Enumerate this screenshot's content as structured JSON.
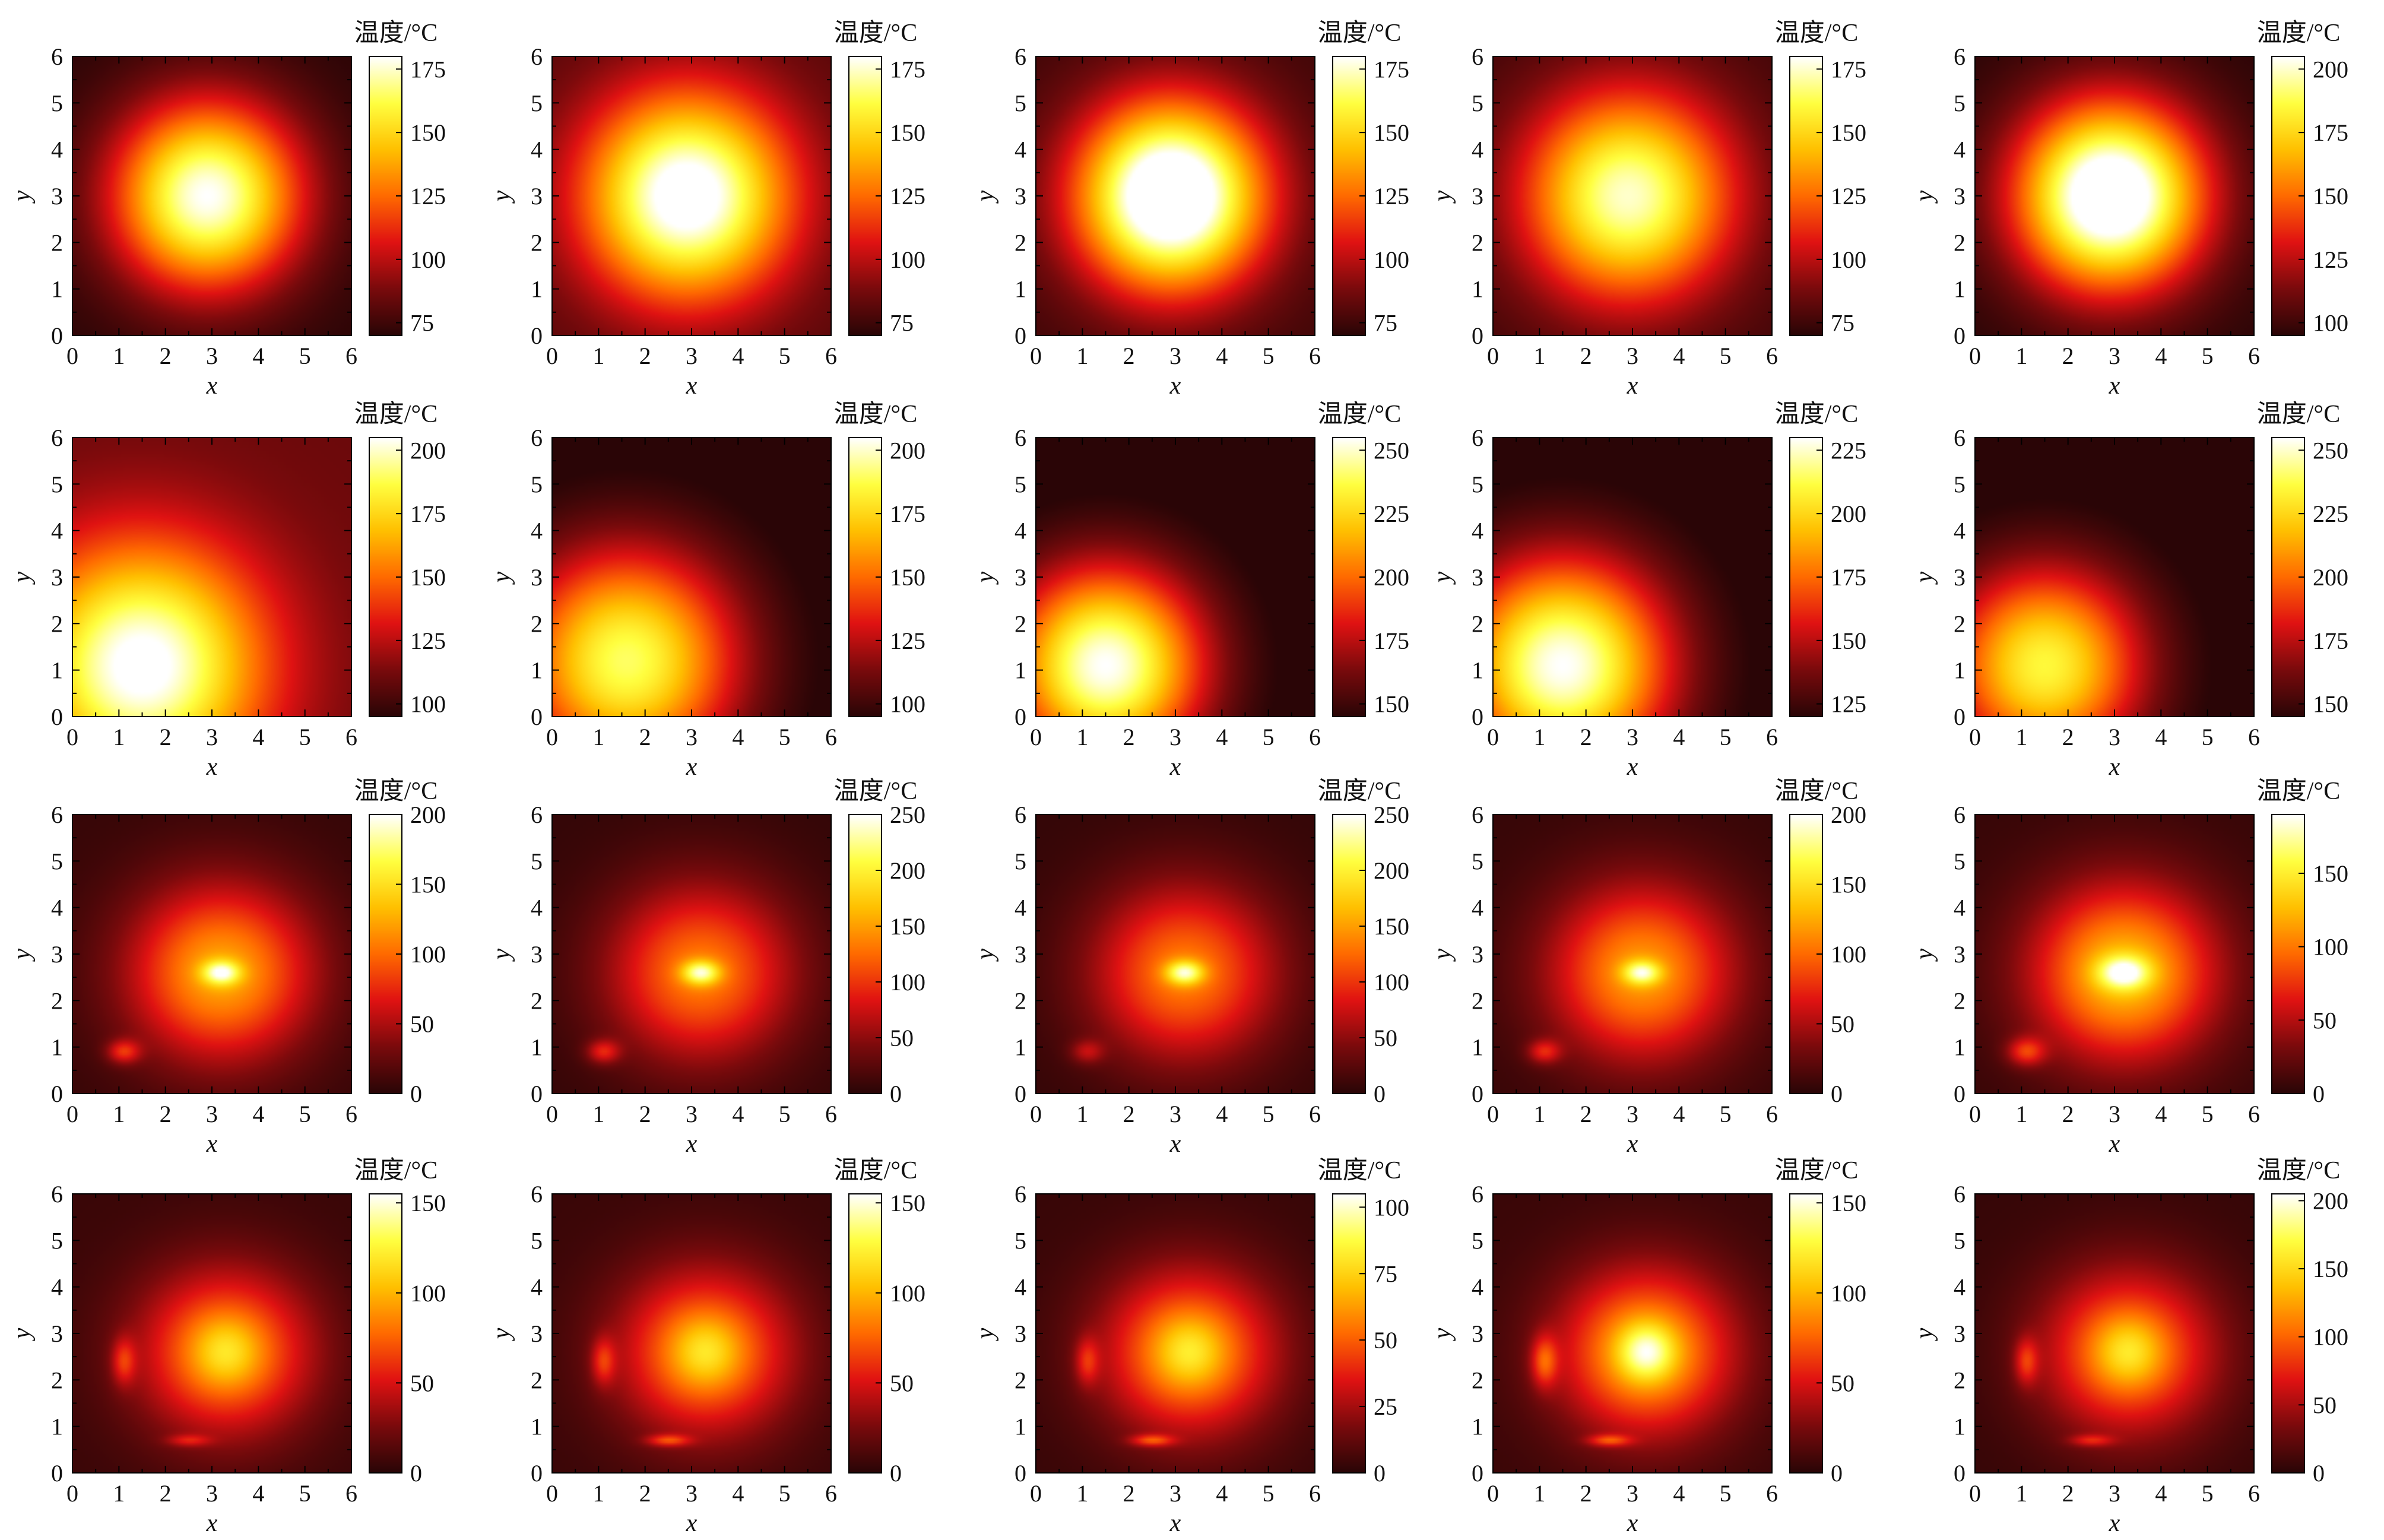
{
  "chart_data": {
    "type": "heatmap",
    "layout": {
      "rows": 4,
      "cols": 5
    },
    "xlabel": "x",
    "ylabel": "y",
    "colorbar_label": "温度/°C",
    "colormap": [
      "#2a0506",
      "#7a0a0c",
      "#e01212",
      "#ff6a00",
      "#ffc000",
      "#ffff40",
      "#ffffff"
    ],
    "xlim": [
      0,
      6
    ],
    "ylim": [
      0,
      6
    ],
    "xticks": [
      0,
      1,
      2,
      3,
      4,
      5,
      6
    ],
    "yticks": [
      0,
      1,
      2,
      3,
      4,
      5,
      6
    ],
    "panels": [
      {
        "cmin": 70,
        "cmax": 180,
        "cbar_ticks": [
          75,
          100,
          125,
          150,
          175
        ],
        "bg": 70,
        "sources": [
          {
            "x": 2.9,
            "y": 3.0,
            "amp": 110,
            "sx": 2.0,
            "sy": 2.0
          }
        ]
      },
      {
        "cmin": 70,
        "cmax": 180,
        "cbar_ticks": [
          75,
          100,
          125,
          150,
          175
        ],
        "bg": 80,
        "sources": [
          {
            "x": 2.9,
            "y": 3.0,
            "amp": 110,
            "sx": 2.2,
            "sy": 2.2
          }
        ]
      },
      {
        "cmin": 70,
        "cmax": 180,
        "cbar_ticks": [
          75,
          100,
          125,
          150,
          175
        ],
        "bg": 75,
        "sources": [
          {
            "x": 2.9,
            "y": 3.0,
            "amp": 130,
            "sx": 2.0,
            "sy": 2.0
          }
        ]
      },
      {
        "cmin": 70,
        "cmax": 180,
        "cbar_ticks": [
          75,
          100,
          125,
          150,
          175
        ],
        "bg": 75,
        "sources": [
          {
            "x": 2.9,
            "y": 3.0,
            "amp": 100,
            "sx": 2.2,
            "sy": 2.2
          }
        ]
      },
      {
        "cmin": 95,
        "cmax": 205,
        "cbar_ticks": [
          100,
          125,
          150,
          175,
          200
        ],
        "bg": 95,
        "sources": [
          {
            "x": 2.9,
            "y": 3.0,
            "amp": 130,
            "sx": 2.0,
            "sy": 2.0
          }
        ]
      },
      {
        "cmin": 95,
        "cmax": 205,
        "cbar_ticks": [
          100,
          125,
          150,
          175,
          200
        ],
        "bg": 110,
        "sources": [
          {
            "x": 1.5,
            "y": 1.1,
            "amp": 100,
            "sx": 2.6,
            "sy": 2.6
          }
        ]
      },
      {
        "cmin": 95,
        "cmax": 205,
        "cbar_ticks": [
          100,
          125,
          150,
          175,
          200
        ],
        "bg": 90,
        "sources": [
          {
            "x": 1.6,
            "y": 1.2,
            "amp": 100,
            "sx": 2.4,
            "sy": 2.4
          }
        ]
      },
      {
        "cmin": 145,
        "cmax": 255,
        "cbar_ticks": [
          150,
          175,
          200,
          225,
          250
        ],
        "bg": 140,
        "sources": [
          {
            "x": 1.5,
            "y": 1.1,
            "amp": 115,
            "sx": 2.1,
            "sy": 2.1
          }
        ]
      },
      {
        "cmin": 120,
        "cmax": 230,
        "cbar_ticks": [
          125,
          150,
          175,
          200,
          225
        ],
        "bg": 115,
        "sources": [
          {
            "x": 1.5,
            "y": 1.1,
            "amp": 115,
            "sx": 2.3,
            "sy": 2.3
          }
        ]
      },
      {
        "cmin": 145,
        "cmax": 255,
        "cbar_ticks": [
          150,
          175,
          200,
          225,
          250
        ],
        "bg": 140,
        "sources": [
          {
            "x": 1.5,
            "y": 1.1,
            "amp": 95,
            "sx": 2.1,
            "sy": 2.1
          }
        ]
      },
      {
        "cmin": 0,
        "cmax": 200,
        "cbar_ticks": [
          0,
          50,
          100,
          150,
          200
        ],
        "bg": 5,
        "sources": [
          {
            "x": 3.2,
            "y": 2.6,
            "amp": 120,
            "sx": 2.0,
            "sy": 1.9
          },
          {
            "x": 3.2,
            "y": 2.6,
            "amp": 85,
            "sx": 0.4,
            "sy": 0.25
          },
          {
            "x": 1.1,
            "y": 0.9,
            "amp": 60,
            "sx": 0.35,
            "sy": 0.25
          }
        ]
      },
      {
        "cmin": 0,
        "cmax": 250,
        "cbar_ticks": [
          0,
          50,
          100,
          150,
          200,
          250
        ],
        "bg": 5,
        "sources": [
          {
            "x": 3.2,
            "y": 2.6,
            "amp": 130,
            "sx": 2.0,
            "sy": 1.9
          },
          {
            "x": 3.2,
            "y": 2.6,
            "amp": 110,
            "sx": 0.4,
            "sy": 0.25
          },
          {
            "x": 1.1,
            "y": 0.9,
            "amp": 70,
            "sx": 0.35,
            "sy": 0.25
          }
        ]
      },
      {
        "cmin": 0,
        "cmax": 250,
        "cbar_ticks": [
          0,
          50,
          100,
          150,
          200,
          250
        ],
        "bg": 5,
        "sources": [
          {
            "x": 3.2,
            "y": 2.6,
            "amp": 130,
            "sx": 2.0,
            "sy": 1.9
          },
          {
            "x": 3.2,
            "y": 2.6,
            "amp": 110,
            "sx": 0.4,
            "sy": 0.25
          },
          {
            "x": 1.1,
            "y": 0.9,
            "amp": 50,
            "sx": 0.35,
            "sy": 0.25
          }
        ]
      },
      {
        "cmin": 0,
        "cmax": 200,
        "cbar_ticks": [
          0,
          50,
          100,
          150,
          200
        ],
        "bg": 5,
        "sources": [
          {
            "x": 3.2,
            "y": 2.6,
            "amp": 115,
            "sx": 2.0,
            "sy": 1.9
          },
          {
            "x": 3.2,
            "y": 2.6,
            "amp": 80,
            "sx": 0.4,
            "sy": 0.25
          },
          {
            "x": 1.1,
            "y": 0.9,
            "amp": 55,
            "sx": 0.35,
            "sy": 0.25
          }
        ]
      },
      {
        "cmin": 0,
        "cmax": 190,
        "cbar_ticks": [
          0,
          50,
          100,
          150
        ],
        "bg": 5,
        "sources": [
          {
            "x": 3.2,
            "y": 2.6,
            "amp": 125,
            "sx": 2.0,
            "sy": 1.9
          },
          {
            "x": 3.2,
            "y": 2.6,
            "amp": 80,
            "sx": 0.55,
            "sy": 0.35
          },
          {
            "x": 1.1,
            "y": 0.9,
            "amp": 60,
            "sx": 0.4,
            "sy": 0.3
          }
        ]
      },
      {
        "cmin": 0,
        "cmax": 155,
        "cbar_ticks": [
          0,
          50,
          100,
          150
        ],
        "bg": 5,
        "sources": [
          {
            "x": 3.3,
            "y": 2.6,
            "amp": 85,
            "sx": 1.9,
            "sy": 1.8
          },
          {
            "x": 3.3,
            "y": 2.6,
            "amp": 30,
            "sx": 0.7,
            "sy": 0.7
          },
          {
            "x": 1.1,
            "y": 2.4,
            "amp": 40,
            "sx": 0.25,
            "sy": 0.5
          },
          {
            "x": 2.5,
            "y": 0.7,
            "amp": 30,
            "sx": 0.45,
            "sy": 0.12
          }
        ]
      },
      {
        "cmin": 0,
        "cmax": 155,
        "cbar_ticks": [
          0,
          50,
          100,
          150
        ],
        "bg": 5,
        "sources": [
          {
            "x": 3.3,
            "y": 2.6,
            "amp": 85,
            "sx": 1.9,
            "sy": 1.8
          },
          {
            "x": 3.3,
            "y": 2.6,
            "amp": 30,
            "sx": 0.7,
            "sy": 0.7
          },
          {
            "x": 1.1,
            "y": 2.4,
            "amp": 40,
            "sx": 0.25,
            "sy": 0.5
          },
          {
            "x": 2.5,
            "y": 0.7,
            "amp": 45,
            "sx": 0.45,
            "sy": 0.12
          }
        ]
      },
      {
        "cmin": 0,
        "cmax": 105,
        "cbar_ticks": [
          0,
          25,
          50,
          75,
          100
        ],
        "bg": 3,
        "sources": [
          {
            "x": 3.3,
            "y": 2.6,
            "amp": 60,
            "sx": 1.9,
            "sy": 1.8
          },
          {
            "x": 3.3,
            "y": 2.6,
            "amp": 20,
            "sx": 0.7,
            "sy": 0.7
          },
          {
            "x": 1.1,
            "y": 2.4,
            "amp": 25,
            "sx": 0.25,
            "sy": 0.5
          },
          {
            "x": 2.5,
            "y": 0.7,
            "amp": 32,
            "sx": 0.45,
            "sy": 0.12
          }
        ]
      },
      {
        "cmin": 0,
        "cmax": 155,
        "cbar_ticks": [
          0,
          50,
          100,
          150
        ],
        "bg": 5,
        "sources": [
          {
            "x": 3.3,
            "y": 2.6,
            "amp": 95,
            "sx": 1.9,
            "sy": 1.8
          },
          {
            "x": 3.3,
            "y": 2.6,
            "amp": 55,
            "sx": 0.6,
            "sy": 0.6
          },
          {
            "x": 1.1,
            "y": 2.4,
            "amp": 50,
            "sx": 0.28,
            "sy": 0.55
          },
          {
            "x": 2.5,
            "y": 0.7,
            "amp": 45,
            "sx": 0.45,
            "sy": 0.12
          }
        ]
      },
      {
        "cmin": 0,
        "cmax": 205,
        "cbar_ticks": [
          0,
          50,
          100,
          150,
          200
        ],
        "bg": 5,
        "sources": [
          {
            "x": 3.3,
            "y": 2.6,
            "amp": 110,
            "sx": 1.9,
            "sy": 1.8
          },
          {
            "x": 3.3,
            "y": 2.6,
            "amp": 45,
            "sx": 0.7,
            "sy": 0.7
          },
          {
            "x": 1.1,
            "y": 2.4,
            "amp": 55,
            "sx": 0.25,
            "sy": 0.5
          },
          {
            "x": 2.5,
            "y": 0.7,
            "amp": 45,
            "sx": 0.45,
            "sy": 0.12
          }
        ]
      }
    ]
  }
}
